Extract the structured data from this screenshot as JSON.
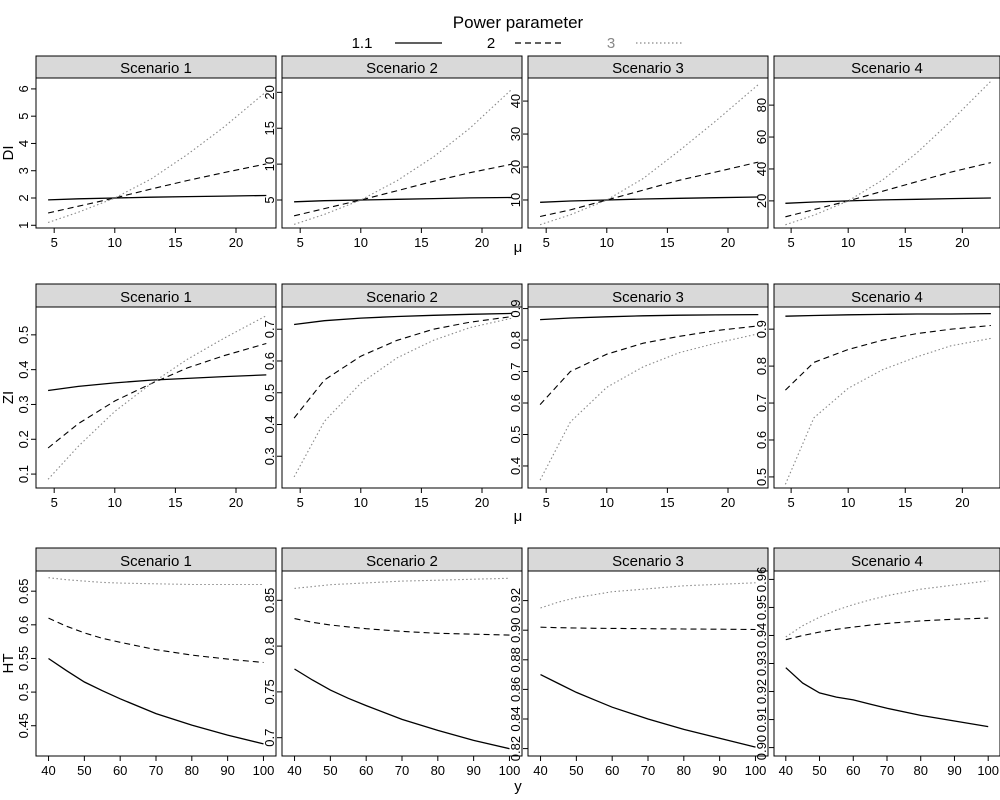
{
  "legend": {
    "title": "Power parameter",
    "entries": [
      {
        "label": "1.1",
        "dash": "solid",
        "color": "#000000"
      },
      {
        "label": "2",
        "dash": "dashed",
        "color": "#000000"
      },
      {
        "label": "3",
        "dash": "dotted",
        "color": "#888888"
      }
    ]
  },
  "chart_data": [
    {
      "type": "line",
      "row": 1,
      "col": 1,
      "title": "Scenario 1",
      "ylabel": "DI",
      "xlabel": "",
      "xlim": [
        3.5,
        23.3
      ],
      "ylim": [
        0.9,
        6.4
      ],
      "xticks": [
        5,
        10,
        15,
        20
      ],
      "yticks": [
        1,
        2,
        3,
        4,
        5,
        6
      ],
      "x": [
        4.5,
        7,
        10,
        13,
        16,
        19,
        22.5
      ],
      "series": [
        {
          "name": "1.1",
          "values": [
            1.93,
            1.97,
            2.0,
            2.03,
            2.05,
            2.07,
            2.09
          ]
        },
        {
          "name": "2",
          "values": [
            1.45,
            1.7,
            2.0,
            2.33,
            2.64,
            2.93,
            3.25
          ]
        },
        {
          "name": "3",
          "values": [
            1.1,
            1.48,
            2.0,
            2.7,
            3.6,
            4.6,
            5.9
          ]
        }
      ]
    },
    {
      "type": "line",
      "row": 1,
      "col": 2,
      "title": "Scenario 2",
      "ylabel": "",
      "xlabel": "",
      "xlim": [
        3.5,
        23.3
      ],
      "ylim": [
        1.1,
        22.0
      ],
      "xticks": [
        5,
        10,
        15,
        20
      ],
      "yticks": [
        5,
        10,
        15,
        20
      ],
      "x": [
        4.5,
        7,
        10,
        13,
        16,
        19,
        22.5
      ],
      "series": [
        {
          "name": "1.1",
          "values": [
            4.75,
            4.9,
            5.0,
            5.1,
            5.2,
            5.3,
            5.35
          ]
        },
        {
          "name": "2",
          "values": [
            2.8,
            3.8,
            5.0,
            6.3,
            7.6,
            8.8,
            10.0
          ]
        },
        {
          "name": "3",
          "values": [
            1.6,
            3.0,
            5.0,
            7.7,
            11.0,
            15.0,
            20.5
          ]
        }
      ]
    },
    {
      "type": "line",
      "row": 1,
      "col": 3,
      "title": "Scenario 3",
      "ylabel": "",
      "xlabel": "",
      "xlim": [
        3.5,
        23.3
      ],
      "ylim": [
        1.5,
        47.0
      ],
      "xticks": [
        5,
        10,
        15,
        20
      ],
      "yticks": [
        10,
        20,
        30,
        40
      ],
      "x": [
        4.5,
        7,
        10,
        13,
        16,
        19,
        22.5
      ],
      "series": [
        {
          "name": "1.1",
          "values": [
            9.3,
            9.7,
            10.0,
            10.3,
            10.5,
            10.7,
            10.9
          ]
        },
        {
          "name": "2",
          "values": [
            5.0,
            7.0,
            10.0,
            13.0,
            16.0,
            18.5,
            21.5
          ]
        },
        {
          "name": "3",
          "values": [
            2.5,
            5.5,
            10.0,
            16.5,
            25.0,
            34.0,
            45.0
          ]
        }
      ]
    },
    {
      "type": "line",
      "row": 1,
      "col": 4,
      "title": "Scenario 4",
      "ylabel": "",
      "xlabel": "",
      "xlim": [
        3.5,
        23.3
      ],
      "ylim": [
        3.0,
        97.0
      ],
      "xticks": [
        5,
        10,
        15,
        20
      ],
      "yticks": [
        20,
        40,
        60,
        80
      ],
      "x": [
        4.5,
        7,
        10,
        13,
        16,
        19,
        22.5
      ],
      "series": [
        {
          "name": "1.1",
          "values": [
            18.5,
            19.3,
            20.0,
            20.6,
            21.0,
            21.4,
            21.8
          ]
        },
        {
          "name": "2",
          "values": [
            10.0,
            14.5,
            20.0,
            26.0,
            32.0,
            38.0,
            44.0
          ]
        },
        {
          "name": "3",
          "values": [
            5.0,
            11.0,
            20.0,
            33.0,
            50.0,
            70.0,
            95.0
          ]
        }
      ]
    },
    {
      "type": "line",
      "row": 2,
      "col": 1,
      "title": "Scenario 1",
      "ylabel": "ZI",
      "xlabel": "",
      "xlim": [
        3.5,
        23.3
      ],
      "ylim": [
        0.06,
        0.58
      ],
      "xticks": [
        5,
        10,
        15,
        20
      ],
      "yticks": [
        0.1,
        0.2,
        0.3,
        0.4,
        0.5
      ],
      "x": [
        4.5,
        7,
        10,
        13,
        16,
        19,
        22.5
      ],
      "series": [
        {
          "name": "1.1",
          "values": [
            0.34,
            0.352,
            0.362,
            0.37,
            0.375,
            0.38,
            0.385
          ]
        },
        {
          "name": "2",
          "values": [
            0.175,
            0.245,
            0.31,
            0.36,
            0.405,
            0.44,
            0.475
          ]
        },
        {
          "name": "3",
          "values": [
            0.085,
            0.18,
            0.28,
            0.36,
            0.43,
            0.49,
            0.555
          ]
        }
      ]
    },
    {
      "type": "line",
      "row": 2,
      "col": 2,
      "title": "Scenario 2",
      "ylabel": "",
      "xlabel": "",
      "xlim": [
        3.5,
        23.3
      ],
      "ylim": [
        0.2,
        0.77
      ],
      "xticks": [
        5,
        10,
        15,
        20
      ],
      "yticks": [
        0.3,
        0.4,
        0.5,
        0.6,
        0.7
      ],
      "x": [
        4.5,
        7,
        10,
        13,
        16,
        19,
        22.5
      ],
      "series": [
        {
          "name": "1.1",
          "values": [
            0.715,
            0.727,
            0.735,
            0.74,
            0.744,
            0.747,
            0.75
          ]
        },
        {
          "name": "2",
          "values": [
            0.42,
            0.54,
            0.615,
            0.665,
            0.7,
            0.722,
            0.74
          ]
        },
        {
          "name": "3",
          "values": [
            0.235,
            0.41,
            0.53,
            0.61,
            0.665,
            0.705,
            0.735
          ]
        }
      ]
    },
    {
      "type": "line",
      "row": 2,
      "col": 3,
      "title": "Scenario 3",
      "ylabel": "",
      "xlabel": "",
      "xlim": [
        3.5,
        23.3
      ],
      "ylim": [
        0.33,
        0.905
      ],
      "xticks": [
        5,
        10,
        15,
        20
      ],
      "yticks": [
        0.4,
        0.5,
        0.6,
        0.7,
        0.8,
        0.9
      ],
      "x": [
        4.5,
        7,
        10,
        13,
        16,
        19,
        22.5
      ],
      "series": [
        {
          "name": "1.1",
          "values": [
            0.865,
            0.87,
            0.874,
            0.877,
            0.879,
            0.88,
            0.881
          ]
        },
        {
          "name": "2",
          "values": [
            0.595,
            0.7,
            0.755,
            0.79,
            0.812,
            0.83,
            0.845
          ]
        },
        {
          "name": "3",
          "values": [
            0.355,
            0.54,
            0.65,
            0.715,
            0.76,
            0.79,
            0.82
          ]
        }
      ]
    },
    {
      "type": "line",
      "row": 2,
      "col": 4,
      "title": "Scenario 4",
      "ylabel": "",
      "xlabel": "",
      "xlim": [
        3.5,
        23.3
      ],
      "ylim": [
        0.47,
        0.96
      ],
      "xticks": [
        5,
        10,
        15,
        20
      ],
      "yticks": [
        0.5,
        0.6,
        0.7,
        0.8,
        0.9
      ],
      "x": [
        4.5,
        7,
        10,
        13,
        16,
        19,
        22.5
      ],
      "series": [
        {
          "name": "1.1",
          "values": [
            0.935,
            0.937,
            0.939,
            0.94,
            0.941,
            0.941,
            0.942
          ]
        },
        {
          "name": "2",
          "values": [
            0.735,
            0.81,
            0.845,
            0.87,
            0.888,
            0.9,
            0.91
          ]
        },
        {
          "name": "3",
          "values": [
            0.48,
            0.66,
            0.74,
            0.79,
            0.825,
            0.855,
            0.875
          ]
        }
      ]
    },
    {
      "type": "line",
      "row": 3,
      "col": 1,
      "title": "Scenario 1",
      "ylabel": "HT",
      "xlabel": "",
      "xlim": [
        36.5,
        103.5
      ],
      "ylim": [
        0.405,
        0.68
      ],
      "xticks": [
        40,
        50,
        60,
        70,
        80,
        90,
        100
      ],
      "yticks": [
        0.45,
        0.5,
        0.55,
        0.6,
        0.65
      ],
      "x": [
        40,
        45,
        50,
        55,
        60,
        70,
        80,
        90,
        100
      ],
      "series": [
        {
          "name": "1.1",
          "values": [
            0.55,
            0.532,
            0.515,
            0.502,
            0.49,
            0.468,
            0.451,
            0.436,
            0.423
          ]
        },
        {
          "name": "2",
          "values": [
            0.61,
            0.598,
            0.588,
            0.58,
            0.574,
            0.563,
            0.555,
            0.549,
            0.544
          ]
        },
        {
          "name": "3",
          "values": [
            0.67,
            0.667,
            0.665,
            0.663,
            0.662,
            0.661,
            0.66,
            0.66,
            0.66
          ]
        }
      ]
    },
    {
      "type": "line",
      "row": 3,
      "col": 2,
      "title": "Scenario 2",
      "ylabel": "",
      "xlabel": "",
      "xlim": [
        36.5,
        103.5
      ],
      "ylim": [
        0.68,
        0.882
      ],
      "xticks": [
        40,
        50,
        60,
        70,
        80,
        90,
        100
      ],
      "yticks": [
        0.7,
        0.75,
        0.8,
        0.85
      ],
      "x": [
        40,
        45,
        50,
        55,
        60,
        70,
        80,
        90,
        100
      ],
      "series": [
        {
          "name": "1.1",
          "values": [
            0.775,
            0.763,
            0.752,
            0.743,
            0.735,
            0.72,
            0.708,
            0.697,
            0.688
          ]
        },
        {
          "name": "2",
          "values": [
            0.83,
            0.826,
            0.823,
            0.821,
            0.819,
            0.816,
            0.814,
            0.813,
            0.812
          ]
        },
        {
          "name": "3",
          "values": [
            0.863,
            0.865,
            0.867,
            0.868,
            0.869,
            0.871,
            0.872,
            0.873,
            0.874
          ]
        }
      ]
    },
    {
      "type": "line",
      "row": 3,
      "col": 3,
      "title": "Scenario 3",
      "ylabel": "",
      "xlabel": "",
      "xlim": [
        36.5,
        103.5
      ],
      "ylim": [
        0.815,
        0.94
      ],
      "xticks": [
        40,
        50,
        60,
        70,
        80,
        90,
        100
      ],
      "yticks": [
        0.82,
        0.84,
        0.86,
        0.88,
        0.9,
        0.92
      ],
      "yticklabels": [
        "0.82",
        "0.84",
        "0.86",
        "0.88",
        "0.90",
        "0.92"
      ],
      "x": [
        40,
        45,
        50,
        55,
        60,
        70,
        80,
        90,
        100
      ],
      "series": [
        {
          "name": "1.1",
          "values": [
            0.87,
            0.864,
            0.858,
            0.853,
            0.848,
            0.84,
            0.833,
            0.827,
            0.821
          ]
        },
        {
          "name": "2",
          "values": [
            0.902,
            0.9017,
            0.9015,
            0.9013,
            0.9012,
            0.901,
            0.9008,
            0.9007,
            0.9005
          ]
        },
        {
          "name": "3",
          "values": [
            0.915,
            0.919,
            0.922,
            0.924,
            0.926,
            0.928,
            0.93,
            0.931,
            0.932
          ]
        }
      ]
    },
    {
      "type": "line",
      "row": 3,
      "col": 4,
      "title": "Scenario 4",
      "ylabel": "",
      "xlabel": "",
      "xlim": [
        36.5,
        103.5
      ],
      "ylim": [
        0.897,
        0.963
      ],
      "xticks": [
        40,
        50,
        60,
        70,
        80,
        90,
        100
      ],
      "yticks": [
        0.9,
        0.91,
        0.92,
        0.93,
        0.94,
        0.95,
        0.96
      ],
      "yticklabels": [
        "0.90",
        "0.91",
        "0.92",
        "0.93",
        "0.94",
        "0.95",
        "0.96"
      ],
      "x": [
        40,
        45,
        50,
        55,
        60,
        65,
        70,
        80,
        90,
        100
      ],
      "series": [
        {
          "name": "1.1",
          "values": [
            0.9285,
            0.923,
            0.9195,
            0.918,
            0.917,
            0.9155,
            0.914,
            0.9115,
            0.9095,
            0.9075
          ]
        },
        {
          "name": "2",
          "values": [
            0.9385,
            0.94,
            0.9412,
            0.9422,
            0.943,
            0.9437,
            0.9443,
            0.9452,
            0.9458,
            0.9462
          ]
        },
        {
          "name": "3",
          "values": [
            0.9395,
            0.9435,
            0.9465,
            0.949,
            0.951,
            0.9527,
            0.9542,
            0.9565,
            0.958,
            0.9595
          ]
        }
      ]
    }
  ],
  "row_xlabels": [
    "μ",
    "μ",
    "y"
  ]
}
